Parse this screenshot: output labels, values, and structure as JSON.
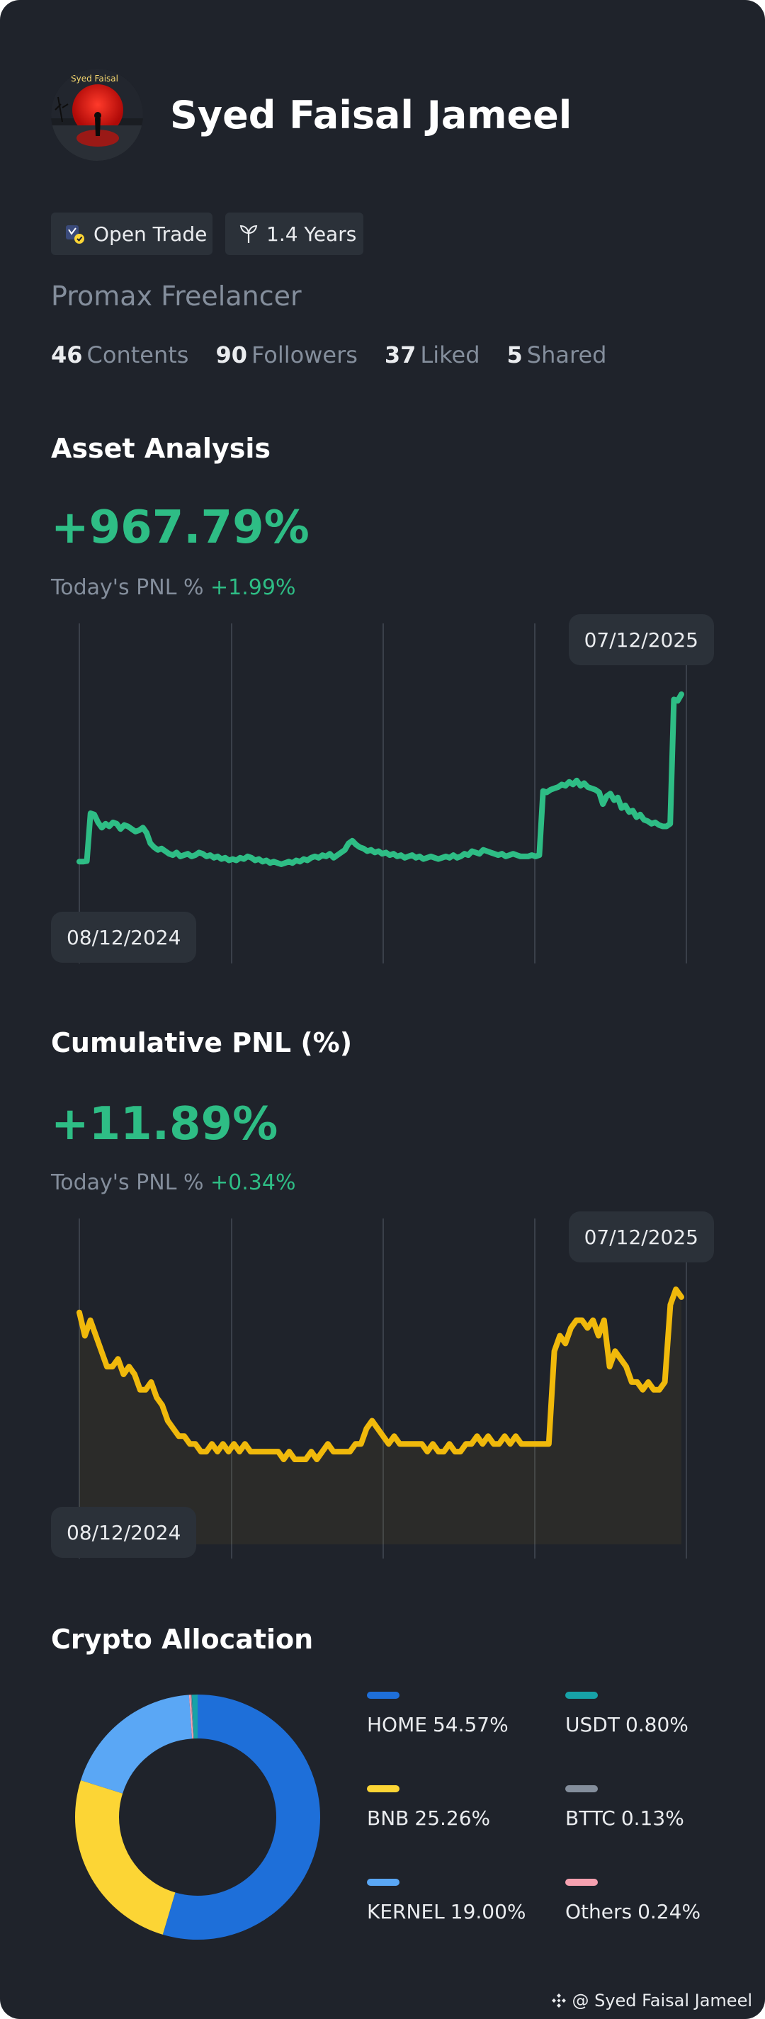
{
  "profile": {
    "name": "Syed Faisal Jameel",
    "avatar_caption": "Syed Faisal",
    "tags": [
      {
        "label": "Open Trade",
        "icon": "open-trade-badge-icon"
      },
      {
        "label": "1.4 Years",
        "icon": "sprout-icon"
      }
    ],
    "subtitle": "Promax Freelancer",
    "stats": [
      {
        "value": "46",
        "label": "Contents"
      },
      {
        "value": "90",
        "label": "Followers"
      },
      {
        "value": "37",
        "label": "Liked"
      },
      {
        "value": "5",
        "label": "Shared"
      }
    ]
  },
  "asset_analysis": {
    "title": "Asset Analysis",
    "value": "+967.79%",
    "today_label": "Today's PNL %",
    "today_value": "+1.99%",
    "start_date": "08/12/2024",
    "end_date": "07/12/2025"
  },
  "cumulative_pnl": {
    "title": "Cumulative PNL (%)",
    "value": "+11.89%",
    "today_label": "Today's PNL %",
    "today_value": "+0.34%",
    "start_date": "08/12/2024",
    "end_date": "07/12/2025"
  },
  "allocation": {
    "title": "Crypto Allocation",
    "items": [
      {
        "name": "HOME",
        "pct": "54.57%",
        "color": "#1e6fd9"
      },
      {
        "name": "USDT",
        "pct": "0.80%",
        "color": "#17a2a8"
      },
      {
        "name": "BNB",
        "pct": "25.26%",
        "color": "#fcd535"
      },
      {
        "name": "BTTC",
        "pct": "0.13%",
        "color": "#848e9c"
      },
      {
        "name": "KERNEL",
        "pct": "19.00%",
        "color": "#5aa7f5"
      },
      {
        "name": "Others",
        "pct": "0.24%",
        "color": "#f6a1b0"
      }
    ]
  },
  "watermark": {
    "text": "@ Syed Faisal Jameel",
    "icon": "binance-logo-icon"
  },
  "colors": {
    "background": "#1f232b",
    "positive": "#2ebd85",
    "cumulative_line": "#f0b90b",
    "muted": "#848e9c",
    "pill": "#2b3139"
  },
  "chart_data": [
    {
      "type": "line",
      "title": "Asset Analysis",
      "x_start": "08/12/2024",
      "x_end": "07/12/2025",
      "grid": "vertical",
      "color": "#2ebd85",
      "values": [
        12,
        12,
        13,
        86,
        84,
        72,
        64,
        70,
        66,
        72,
        70,
        62,
        68,
        66,
        62,
        58,
        60,
        64,
        56,
        40,
        34,
        30,
        32,
        28,
        24,
        22,
        26,
        20,
        22,
        24,
        20,
        22,
        26,
        24,
        20,
        22,
        18,
        20,
        16,
        18,
        14,
        16,
        14,
        18,
        16,
        20,
        18,
        14,
        16,
        12,
        14,
        10,
        12,
        10,
        8,
        10,
        12,
        10,
        14,
        12,
        16,
        14,
        18,
        20,
        18,
        22,
        20,
        24,
        18,
        22,
        26,
        30,
        40,
        44,
        38,
        34,
        32,
        28,
        30,
        26,
        28,
        24,
        26,
        22,
        24,
        20,
        22,
        18,
        20,
        22,
        18,
        20,
        16,
        18,
        20,
        18,
        16,
        18,
        20,
        18,
        22,
        18,
        20,
        24,
        22,
        28,
        26,
        24,
        30,
        28,
        26,
        24,
        22,
        24,
        20,
        22,
        24,
        22,
        20,
        20,
        20,
        22,
        20,
        22,
        120,
        118,
        122,
        124,
        126,
        130,
        128,
        134,
        130,
        136,
        128,
        132,
        126,
        124,
        122,
        118,
        100,
        112,
        116,
        106,
        110,
        94,
        98,
        88,
        90,
        80,
        84,
        76,
        74,
        70,
        72,
        68,
        66,
        66,
        70,
        260,
        258,
        268
      ]
    },
    {
      "type": "line",
      "title": "Cumulative PNL (%)",
      "x_start": "08/12/2024",
      "x_end": "07/12/2025",
      "grid": "vertical",
      "color": "#f0b90b",
      "values": [
        29,
        26,
        28,
        26,
        24,
        22,
        22,
        23,
        21,
        22,
        21,
        19,
        19,
        20,
        18,
        17,
        15,
        14,
        13,
        13,
        12,
        12,
        11,
        11,
        12,
        11,
        12,
        11,
        12,
        11,
        12,
        11,
        11,
        11,
        11,
        11,
        11,
        10,
        11,
        10,
        10,
        10,
        11,
        10,
        11,
        12,
        11,
        11,
        11,
        11,
        12,
        12,
        14,
        15,
        14,
        13,
        12,
        13,
        12,
        12,
        12,
        12,
        12,
        11,
        12,
        11,
        11,
        12,
        11,
        11,
        12,
        12,
        13,
        12,
        13,
        12,
        12,
        13,
        12,
        13,
        12,
        12,
        12,
        12,
        12,
        12,
        24,
        26,
        25,
        27,
        28,
        28,
        27,
        28,
        26,
        28,
        22,
        24,
        23,
        22,
        20,
        20,
        19,
        20,
        19,
        19,
        20,
        30,
        32,
        31
      ]
    }
  ]
}
